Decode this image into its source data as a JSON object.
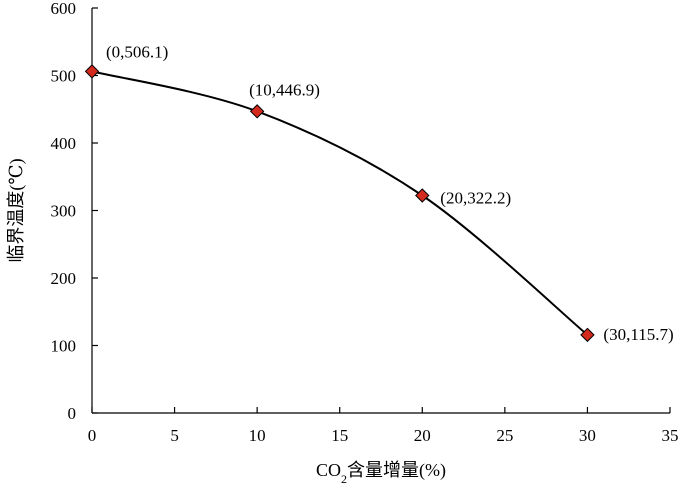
{
  "chart_data": {
    "type": "scatter",
    "title": "",
    "xlabel": "CO2含量增量(%)",
    "xlabel_parts": {
      "before": "CO",
      "sub": "2",
      "after": "含量增量(%)"
    },
    "ylabel": "临界温度(℃)",
    "xlim": [
      0,
      35
    ],
    "ylim": [
      0,
      600
    ],
    "xticks": [
      "0",
      "5",
      "10",
      "15",
      "20",
      "25",
      "30",
      "35"
    ],
    "yticks": [
      "0",
      "100",
      "200",
      "300",
      "400",
      "500",
      "600"
    ],
    "grid": false,
    "legend": "none",
    "trendline": "smooth curve",
    "marker": "diamond",
    "marker_color": "#d42a1e",
    "line_color": "#000000",
    "series": [
      {
        "points": [
          {
            "x": 0,
            "y": 506.1,
            "label": "(0,506.1)"
          },
          {
            "x": 10,
            "y": 446.9,
            "label": "(10,446.9)"
          },
          {
            "x": 20,
            "y": 322.2,
            "label": "(20,322.2)"
          },
          {
            "x": 30,
            "y": 115.7,
            "label": "(30,115.7)"
          }
        ]
      }
    ]
  }
}
